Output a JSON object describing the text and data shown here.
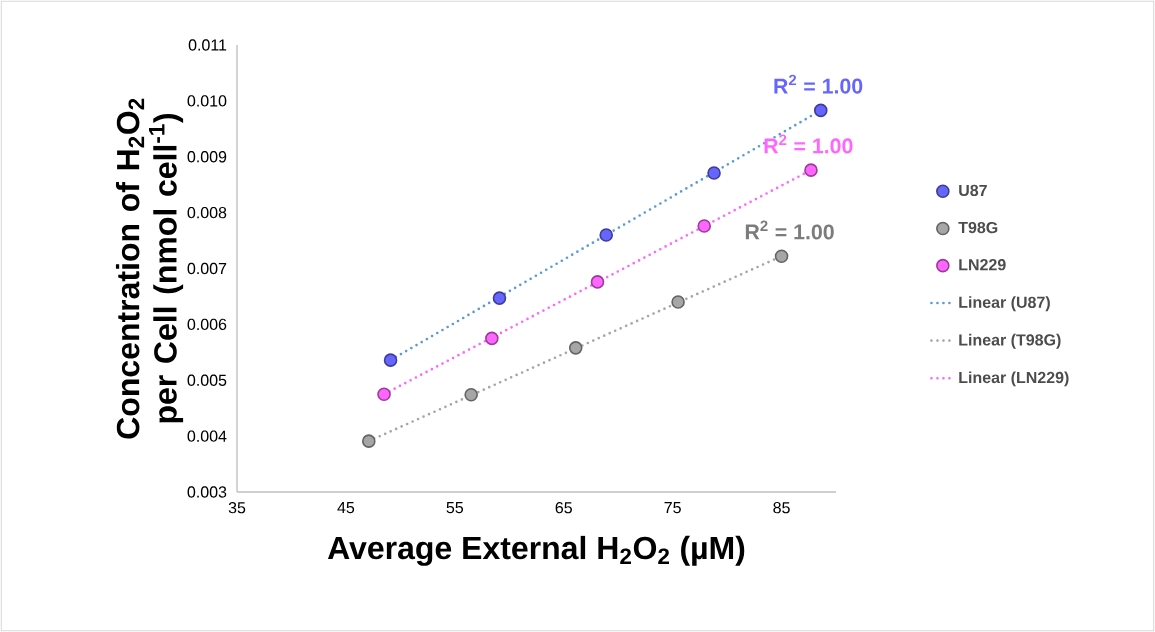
{
  "chart_data": {
    "type": "scatter",
    "xlabel": "Average External H$_{2}$O$_{2}$ (µM)",
    "ylabel": "Concentration of H$_{2}$O$_{2}$ per Cell (nmol cell$^{-1}$)",
    "xlim": [
      35,
      90
    ],
    "xticks": [
      35,
      45,
      55,
      65,
      75,
      85
    ],
    "ylim": [
      0.003,
      0.011
    ],
    "yticks": [
      0.003,
      0.004,
      0.005,
      0.006,
      0.007,
      0.008,
      0.009,
      {
        "value": 0.01,
        "label": "0.010"
      },
      0.011
    ],
    "legend": "right",
    "grid": false,
    "series": [
      {
        "name": "U87",
        "marker": "circle",
        "color": "#6666ff",
        "x": [
          49.1,
          59.1,
          68.9,
          78.8,
          88.6
        ],
        "values": [
          0.00536,
          0.00647,
          0.0076,
          0.00871,
          0.00983
        ]
      },
      {
        "name": "T98G",
        "marker": "circle",
        "color": "#a6a6a6",
        "x": [
          47.1,
          56.5,
          66.1,
          75.5,
          85.0
        ],
        "values": [
          0.00391,
          0.00474,
          0.00558,
          0.0064,
          0.00722
        ]
      },
      {
        "name": "LN229",
        "marker": "circle",
        "color": "#ff66ff",
        "x": [
          48.5,
          58.4,
          68.1,
          77.9,
          87.7
        ],
        "values": [
          0.00475,
          0.00575,
          0.00676,
          0.00776,
          0.00876
        ]
      },
      {
        "name": "Linear  (U87)",
        "type": "line",
        "line_style": "dotted",
        "color": "#5b9bd5",
        "x": [
          49.1,
          88.6
        ],
        "values": [
          0.00536,
          0.00983
        ]
      },
      {
        "name": "Linear  (T98G)",
        "type": "line",
        "line_style": "dotted",
        "color": "#a6a6a6",
        "x": [
          47.1,
          85.0
        ],
        "values": [
          0.00391,
          0.00722
        ]
      },
      {
        "name": "Linear  (LN229)",
        "type": "line",
        "line_style": "dotted",
        "color": "#ff66ff",
        "x": [
          48.5,
          87.7
        ],
        "values": [
          0.00475,
          0.00876
        ]
      }
    ],
    "annotations": [
      "R$^{2}$ = 1.00",
      "R$^{2}$ = 1.00",
      "R$^{2}$ = 1.00"
    ]
  }
}
